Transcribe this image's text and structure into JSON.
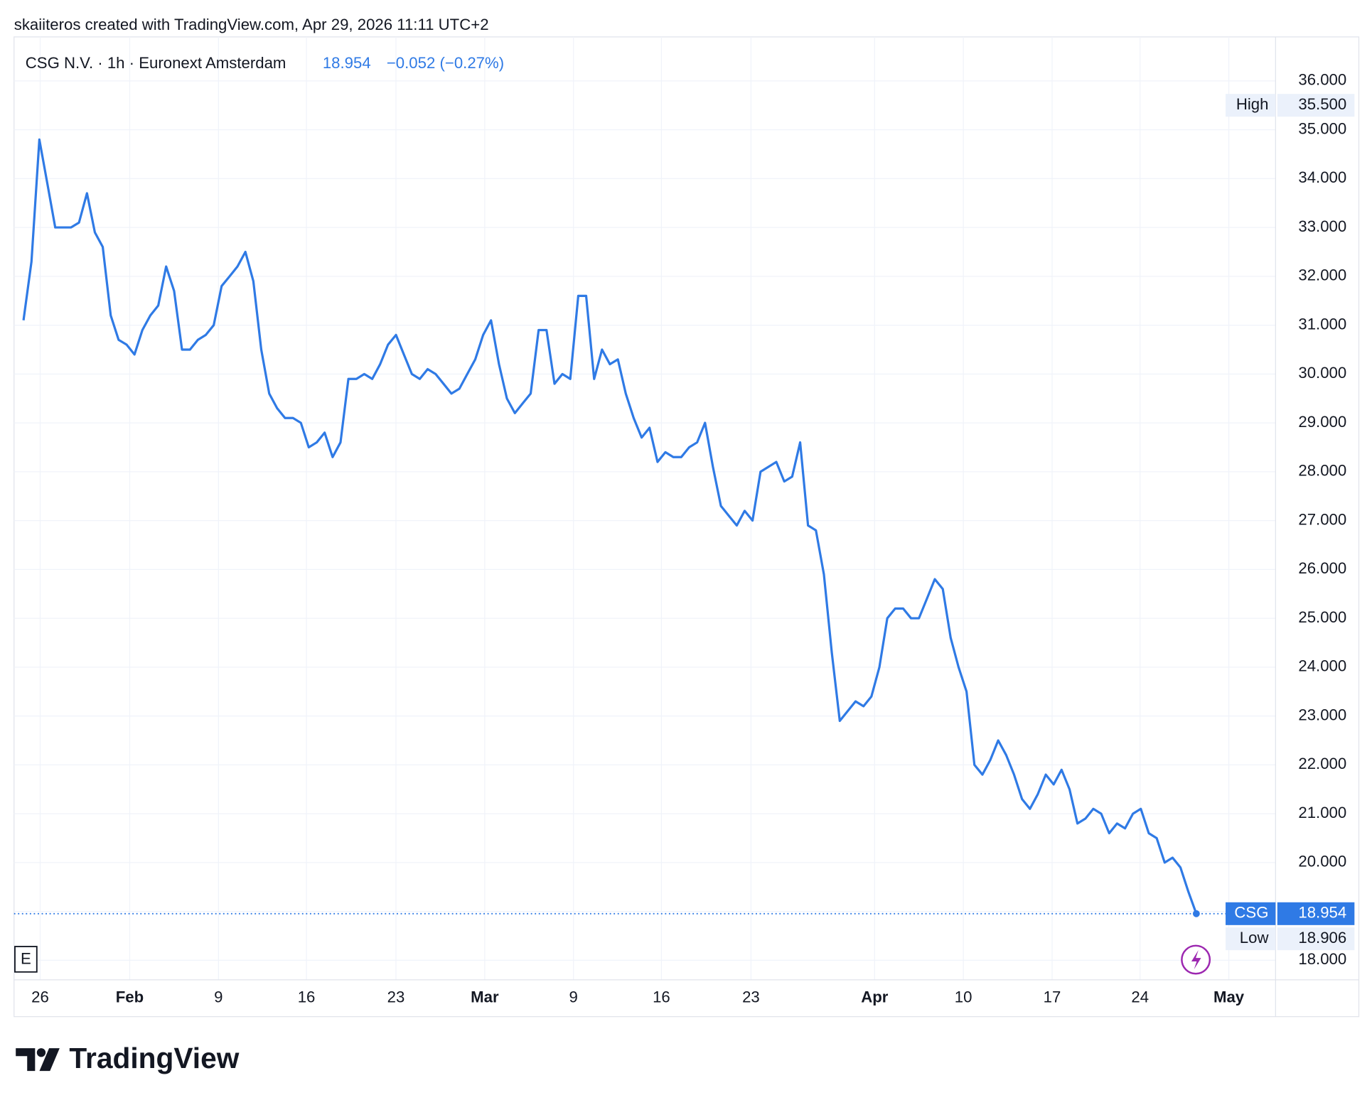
{
  "header": "skaiiteros created with TradingView.com, Apr 29, 2026 11:11 UTC+2",
  "legend": {
    "symbol": "CSG N.V. · 1h · Euronext Amsterdam",
    "price": "18.954",
    "change": "−0.052 (−0.27%)"
  },
  "footer": {
    "brand": "TradingView"
  },
  "toolbar": {
    "e_button": "E"
  },
  "chart_data": {
    "type": "line",
    "series": [
      {
        "name": "CSG",
        "color": "#2f7ae5",
        "values": [
          31.1,
          32.3,
          34.8,
          33.9,
          33.0,
          33.0,
          33.0,
          33.1,
          33.7,
          32.9,
          32.6,
          31.2,
          30.7,
          30.6,
          30.4,
          30.9,
          31.2,
          31.4,
          32.2,
          31.7,
          30.5,
          30.5,
          30.7,
          30.8,
          31.0,
          31.8,
          32.0,
          32.2,
          32.5,
          31.9,
          30.5,
          29.6,
          29.3,
          29.1,
          29.1,
          29.0,
          28.5,
          28.6,
          28.8,
          28.3,
          28.6,
          29.9,
          29.9,
          30.0,
          29.9,
          30.2,
          30.6,
          30.8,
          30.4,
          30.0,
          29.9,
          30.1,
          30.0,
          29.8,
          29.6,
          29.7,
          30.0,
          30.3,
          30.8,
          31.1,
          30.2,
          29.5,
          29.2,
          29.4,
          29.6,
          30.9,
          30.9,
          29.8,
          30.0,
          29.9,
          31.6,
          31.6,
          29.9,
          30.5,
          30.2,
          30.3,
          29.6,
          29.1,
          28.7,
          28.9,
          28.2,
          28.4,
          28.3,
          28.3,
          28.5,
          28.6,
          29.0,
          28.1,
          27.3,
          27.1,
          26.9,
          27.2,
          27.0,
          28.0,
          28.1,
          28.2,
          27.8,
          27.9,
          28.6,
          26.9,
          26.8,
          25.9,
          24.3,
          22.9,
          23.1,
          23.3,
          23.2,
          23.4,
          24.0,
          25.0,
          25.2,
          25.2,
          25.0,
          25.0,
          25.4,
          25.8,
          25.6,
          24.6,
          24.0,
          23.5,
          22.0,
          21.8,
          22.1,
          22.5,
          22.2,
          21.8,
          21.3,
          21.1,
          21.4,
          21.8,
          21.6,
          21.9,
          21.5,
          20.8,
          20.9,
          21.1,
          21.0,
          20.6,
          20.8,
          20.7,
          21.0,
          21.1,
          20.6,
          20.5,
          20.0,
          20.1,
          19.9,
          19.4,
          18.954
        ]
      }
    ],
    "xlim": [
      -1.2,
      158
    ],
    "xticks": [
      {
        "value": 2.1,
        "label": "26"
      },
      {
        "value": 13.4,
        "label": "Feb"
      },
      {
        "value": 24.6,
        "label": "9"
      },
      {
        "value": 35.7,
        "label": "16"
      },
      {
        "value": 47.0,
        "label": "23"
      },
      {
        "value": 58.2,
        "label": "Mar"
      },
      {
        "value": 69.4,
        "label": "9"
      },
      {
        "value": 80.5,
        "label": "16"
      },
      {
        "value": 91.8,
        "label": "23"
      },
      {
        "value": 107.4,
        "label": "Apr"
      },
      {
        "value": 118.6,
        "label": "10"
      },
      {
        "value": 129.8,
        "label": "17"
      },
      {
        "value": 140.9,
        "label": "24"
      },
      {
        "value": 152.1,
        "label": "May"
      }
    ],
    "ylim": [
      17.6,
      36.9
    ],
    "yticks": [
      {
        "value": 18,
        "label": "18.000"
      },
      {
        "value": 19,
        "label": "19.000"
      },
      {
        "value": 20,
        "label": "20.000"
      },
      {
        "value": 21,
        "label": "21.000"
      },
      {
        "value": 22,
        "label": "22.000"
      },
      {
        "value": 23,
        "label": "23.000"
      },
      {
        "value": 24,
        "label": "24.000"
      },
      {
        "value": 25,
        "label": "25.000"
      },
      {
        "value": 26,
        "label": "26.000"
      },
      {
        "value": 27,
        "label": "27.000"
      },
      {
        "value": 28,
        "label": "28.000"
      },
      {
        "value": 29,
        "label": "29.000"
      },
      {
        "value": 30,
        "label": "30.000"
      },
      {
        "value": 31,
        "label": "31.000"
      },
      {
        "value": 32,
        "label": "32.000"
      },
      {
        "value": 33,
        "label": "33.000"
      },
      {
        "value": 34,
        "label": "34.000"
      },
      {
        "value": 35,
        "label": "35.000"
      },
      {
        "value": 36,
        "label": "36.000"
      }
    ],
    "grid": true,
    "markers": {
      "high": {
        "label": "High",
        "value": 35.5,
        "value_label": "35.500"
      },
      "current": {
        "label": "CSG",
        "value": 18.954,
        "value_label": "18.954"
      },
      "low": {
        "label": "Low",
        "value": 18.906,
        "value_label": "18.906"
      }
    }
  }
}
